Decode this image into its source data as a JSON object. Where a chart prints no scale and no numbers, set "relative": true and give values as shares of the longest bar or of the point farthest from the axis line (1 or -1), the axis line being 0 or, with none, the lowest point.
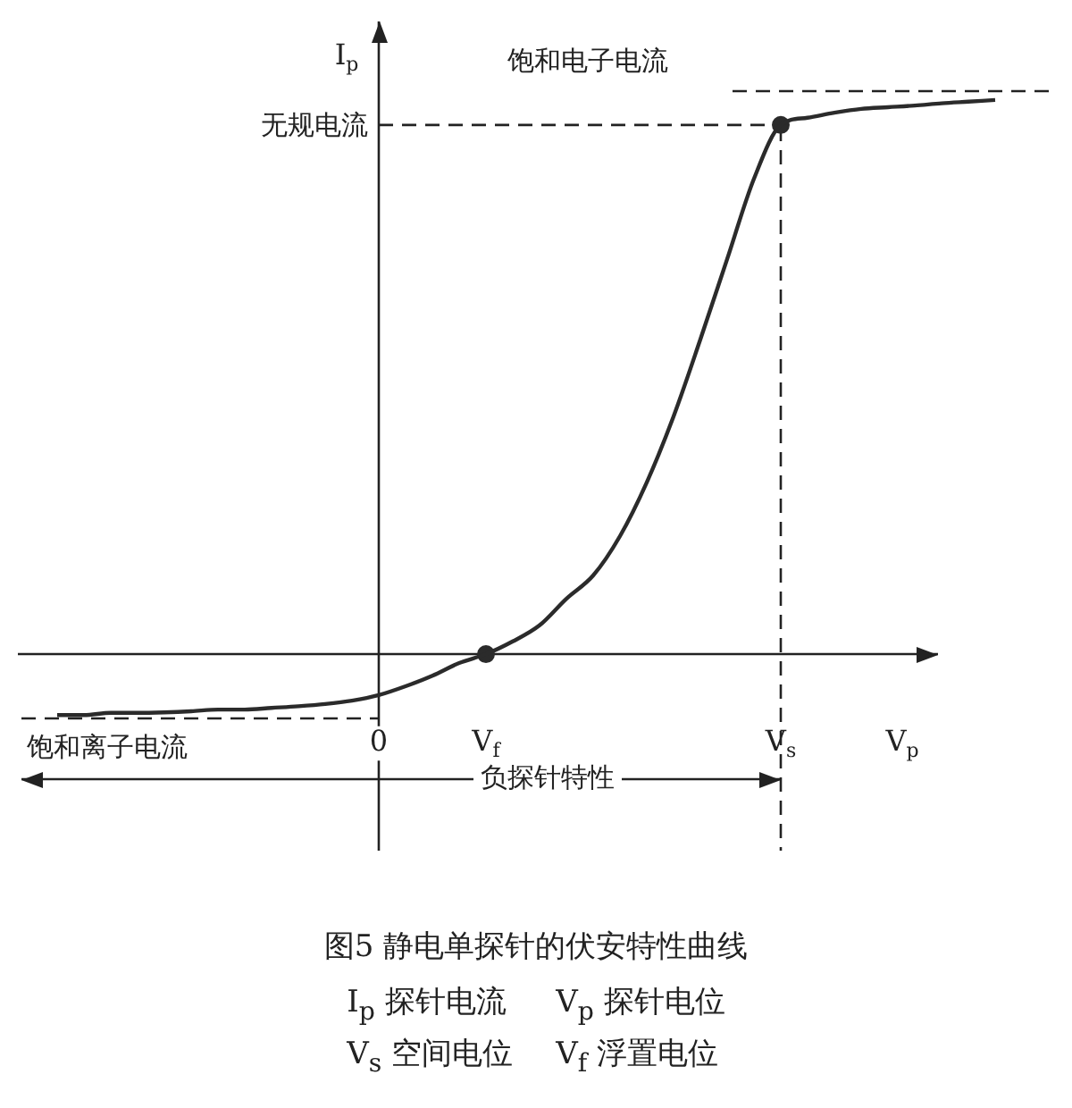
{
  "chart_data": {
    "type": "line",
    "relative": true,
    "title": "图5  静电单探针的伏安特性曲线",
    "xlabel": "V$_{p}$",
    "ylabel": "I$_{p}$",
    "categories": [
      null,
      null,
      null,
      null,
      null,
      null,
      null,
      null,
      null,
      null,
      null,
      null,
      "0",
      null,
      null,
      null,
      "V$_{f}$",
      null,
      null,
      null,
      null,
      null,
      null,
      null,
      null,
      null,
      null,
      "V$_{s}$",
      null,
      null,
      null,
      null,
      null,
      null,
      null,
      null
    ],
    "series": [
      {
        "color": "#2b2b2b",
        "marker": "none",
        "values": [
          -0.11,
          -0.11,
          -0.106,
          -0.106,
          -0.105,
          -0.103,
          -0.1,
          -0.1,
          -0.097,
          -0.094,
          -0.09,
          -0.084,
          -0.074,
          -0.058,
          -0.039,
          -0.016,
          0,
          0.023,
          0.052,
          0.1,
          0.142,
          0.213,
          0.31,
          0.429,
          0.568,
          0.713,
          0.858,
          0.955,
          0.968,
          0.977,
          0.984,
          0.987,
          0.99,
          0.994,
          0.997,
          1
        ]
      },
      {
        "type": "scatter",
        "color": "#2b2b2b",
        "marker": "circle",
        "x": [
          "V$_{f}$",
          "V$_{s}$"
        ],
        "values": [
          0,
          0.955
        ]
      }
    ],
    "ref_lines": [
      {
        "axis": "y",
        "value": 1.016,
        "label": "饱和电子电流",
        "line_style": "dashed"
      },
      {
        "axis": "y",
        "value": 0.955,
        "label": "无规电流",
        "line_style": "dashed"
      },
      {
        "axis": "y",
        "value": -0.116,
        "label": "饱和离子电流",
        "line_style": "dashed"
      },
      {
        "axis": "x",
        "value": "V$_{s}$",
        "line_style": "dashed"
      }
    ],
    "annotations": [
      "负探针特性",
      "I$_{p}$ 探针电流",
      "V$_{p}$ 探针电位",
      "V$_{s}$ 空间电位",
      "V$_{f}$ 浮置电位"
    ],
    "grid": false,
    "legend": false
  }
}
